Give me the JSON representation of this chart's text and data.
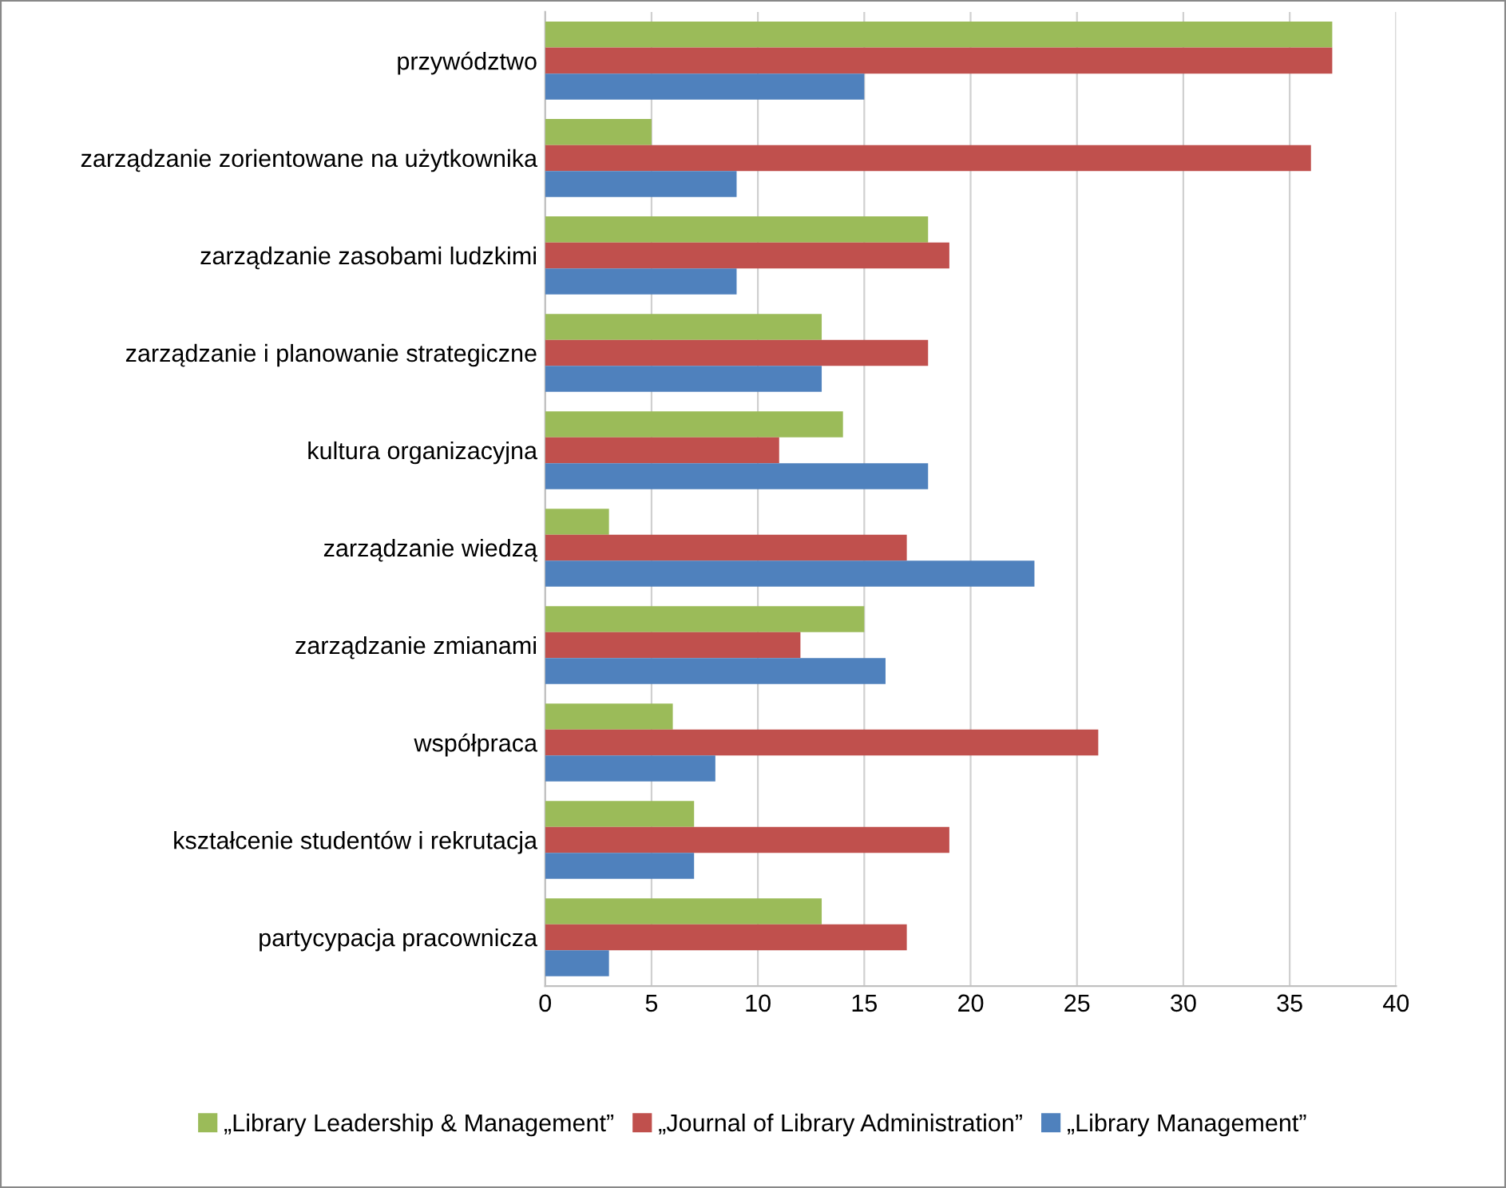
{
  "chart_data": {
    "type": "bar",
    "orientation": "horizontal",
    "categories": [
      "przywództwo",
      "zarządzanie zorientowane na użytkownika",
      "zarządzanie zasobami ludzkimi",
      "zarządzanie i planowanie strategiczne",
      "kultura organizacyjna",
      "zarządzanie wiedzą",
      "zarządzanie zmianami",
      "współpraca",
      "kształcenie studentów i rekrutacja",
      "partycypacja pracownicza"
    ],
    "series": [
      {
        "name": "„Library Leadership & Management”",
        "color": "#9bbb59",
        "values": [
          37,
          5,
          18,
          13,
          14,
          3,
          15,
          6,
          7,
          13
        ]
      },
      {
        "name": "„Journal of Library Administration”",
        "color": "#c0504d",
        "values": [
          37,
          36,
          19,
          18,
          11,
          17,
          12,
          26,
          19,
          17
        ]
      },
      {
        "name": "„Library Management”",
        "color": "#4f81bd",
        "values": [
          15,
          9,
          9,
          13,
          18,
          23,
          16,
          8,
          7,
          3
        ]
      }
    ],
    "xlim": [
      0,
      40
    ],
    "xticks": [
      0,
      5,
      10,
      15,
      20,
      25,
      30,
      35,
      40
    ],
    "grid": "x",
    "legend": "bottom"
  }
}
